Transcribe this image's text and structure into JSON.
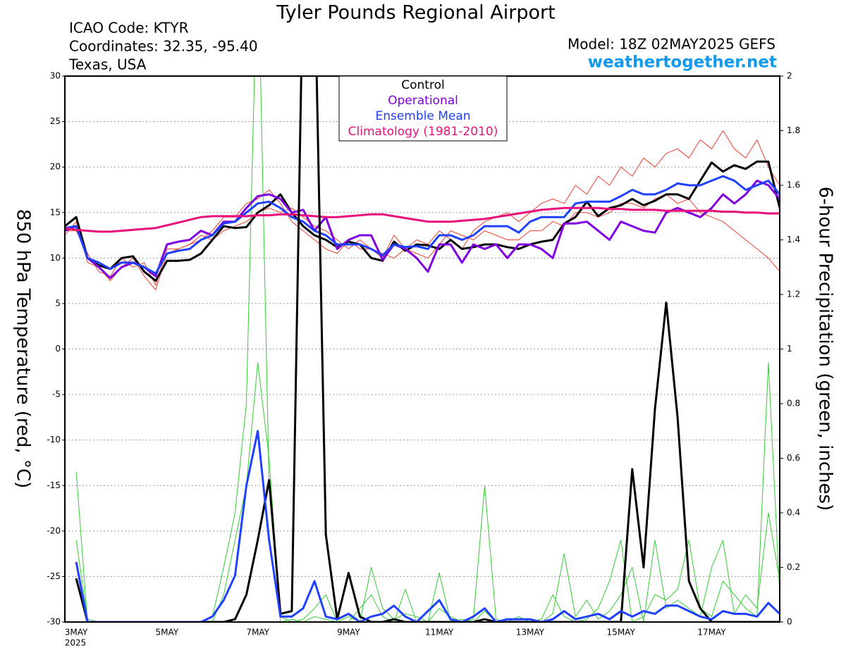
{
  "chart_data": {
    "type": "line",
    "title": "Tyler Pounds Regional Airport",
    "header_left": [
      "ICAO Code: KTYR",
      "Coordinates: 32.35, -95.40",
      "Texas, USA"
    ],
    "model": "Model: 18Z 02MAY2025 GEFS",
    "source": "weathertogether.net",
    "ylabel": "850 hPa Temperature (red, °C)",
    "y2label": "6-hour Precipitation (green, inches)",
    "year": "2025",
    "categories": [
      null,
      "3MAY",
      null,
      null,
      null,
      null,
      null,
      null,
      null,
      "5MAY",
      null,
      null,
      null,
      null,
      null,
      null,
      null,
      "7MAY",
      null,
      null,
      null,
      null,
      null,
      null,
      null,
      "9MAY",
      null,
      null,
      null,
      null,
      null,
      null,
      null,
      "11MAY",
      null,
      null,
      null,
      null,
      null,
      null,
      null,
      "13MAY",
      null,
      null,
      null,
      null,
      null,
      null,
      null,
      "15MAY",
      null,
      null,
      null,
      null,
      null,
      null,
      null,
      "17MAY",
      null,
      null,
      null,
      null,
      null,
      null
    ],
    "ylim": [
      -30,
      30
    ],
    "yticks": [
      -30,
      -25,
      -20,
      -15,
      -10,
      -5,
      0,
      5,
      10,
      15,
      20,
      25,
      30
    ],
    "y2lim": [
      0,
      2
    ],
    "y2ticks": [
      0,
      0.2,
      0.4,
      0.6,
      0.8,
      1,
      1.2,
      1.4,
      1.6,
      1.8,
      2
    ],
    "grid": true,
    "series": [
      {
        "color": "#f04030",
        "values": [
          12.5,
          14,
          9.5,
          9,
          7.5,
          9,
          10,
          8,
          6.5,
          10.5,
          11,
          11.5,
          12,
          13,
          14.5,
          14.5,
          16,
          16.5,
          17.5,
          16,
          14,
          13,
          12,
          11,
          10.5,
          12,
          11,
          11,
          10,
          12.5,
          11,
          12,
          11.5,
          13,
          12,
          11,
          13,
          14,
          14.5,
          15,
          14,
          15,
          16,
          16.5,
          16,
          18,
          17,
          19,
          18,
          20,
          19,
          21,
          20,
          21.5,
          22,
          21,
          23,
          22,
          24,
          22,
          21,
          23,
          20,
          18
        ]
      },
      {
        "color": "#f04030",
        "values": [
          13,
          13,
          10.5,
          8.5,
          8,
          10,
          9,
          9.5,
          7,
          11,
          11,
          11.5,
          12.5,
          12,
          13,
          13.5,
          14,
          15,
          15.5,
          15,
          15.5,
          14.5,
          13.5,
          13,
          12,
          11,
          12,
          11,
          10.5,
          10,
          11,
          10.5,
          10,
          11.5,
          13,
          12.5,
          12,
          13,
          12.5,
          12,
          12,
          13,
          13,
          14,
          13.5,
          15,
          15,
          14.5,
          15,
          16,
          16,
          15.5,
          16.5,
          17,
          16,
          16.5,
          15,
          14.5,
          14,
          13,
          12,
          11,
          10,
          8.5
        ]
      },
      {
        "color": "#33cc33",
        "axis": "y2",
        "values": [
          null,
          0.55,
          0,
          0,
          0,
          0,
          0,
          0,
          0,
          0,
          0,
          0,
          0,
          0,
          0.1,
          0.3,
          0.5,
          0.95,
          0.6,
          0.02,
          0,
          0.01,
          0.05,
          0.1,
          0,
          0,
          0.05,
          0.1,
          0.02,
          0,
          0.12,
          0,
          0,
          0.18,
          0,
          0.01,
          0,
          0.04,
          0,
          0,
          0,
          0,
          0.01,
          0.1,
          0.02,
          0,
          0.01,
          0.05,
          0.15,
          0.3,
          0,
          0.02,
          0.1,
          0.08,
          0.12,
          0.3,
          0.05,
          0.02,
          0.15,
          0.1,
          0.05,
          0.02,
          0.95,
          0.1
        ]
      },
      {
        "color": "#33cc33",
        "axis": "y2",
        "values": [
          null,
          0.3,
          0.01,
          0,
          0,
          0,
          0,
          0,
          0,
          0,
          0,
          0,
          0,
          0.02,
          0.2,
          0.4,
          0.8,
          2.5,
          0.5,
          0,
          0.01,
          0,
          0.02,
          0.01,
          0,
          0.02,
          0,
          0.2,
          0.05,
          0.01,
          0.03,
          0.02,
          0,
          0.05,
          0.02,
          0,
          0.01,
          0.5,
          0.01,
          0,
          0.02,
          0,
          0,
          0.03,
          0.25,
          0.02,
          0.08,
          0.01,
          0.04,
          0.1,
          0.2,
          0,
          0.3,
          0.05,
          0.08,
          0.05,
          0.02,
          0.2,
          0.3,
          0.03,
          0.1,
          0.05,
          0.4,
          0.15
        ]
      },
      {
        "name": "Control",
        "color": "#000000",
        "values": [
          13.5,
          14.5,
          10,
          9.2,
          8.8,
          10,
          10.2,
          8.5,
          7.5,
          9.7,
          9.7,
          9.8,
          10.5,
          12,
          13.5,
          13.3,
          13.4,
          15,
          15.8,
          17,
          15,
          13.5,
          12.5,
          12,
          11.2,
          11.8,
          11.5,
          10,
          9.7,
          11.8,
          10.8,
          11.5,
          11.4,
          11,
          12,
          11,
          11.2,
          11.5,
          11.5,
          11.2,
          11,
          11.5,
          11.8,
          12,
          13.8,
          14.5,
          16.2,
          14.6,
          15.5,
          15.8,
          16.5,
          15.8,
          16.3,
          17,
          17,
          16.5,
          18.5,
          20.5,
          19.5,
          20.2,
          19.8,
          20.6,
          20.6,
          15.5
        ]
      },
      {
        "name": "Operational",
        "color": "#8000e0",
        "values": [
          13,
          13.5,
          10,
          9,
          7.8,
          9,
          9.5,
          9,
          8,
          11.5,
          11.8,
          12,
          13,
          12.5,
          14,
          14,
          15.5,
          16.8,
          17,
          16.5,
          15,
          15.3,
          13,
          14.5,
          11,
          12,
          12.5,
          12.5,
          9.8,
          11.5,
          11,
          10,
          8.5,
          11.5,
          11.5,
          9.5,
          11.5,
          11,
          11.5,
          10,
          11.5,
          11.5,
          11,
          10,
          13.8,
          13.8,
          14,
          13,
          12,
          14,
          13.5,
          13,
          12.8,
          15,
          15.5,
          15,
          14.5,
          15.5,
          17,
          16,
          17,
          18.5,
          18,
          16.5
        ]
      },
      {
        "name": "Ensemble Mean",
        "color": "#2040ff",
        "values": [
          13.3,
          13.5,
          10,
          9.5,
          8.8,
          9.5,
          9.5,
          9,
          8.3,
          10.5,
          10.8,
          11,
          12,
          12.5,
          13.8,
          14,
          15,
          16,
          16.2,
          15.5,
          14.5,
          14,
          13,
          12.5,
          11.5,
          11.5,
          11.5,
          11,
          10.3,
          11.5,
          11.2,
          11.3,
          11,
          12.5,
          12.5,
          12,
          12.5,
          13.5,
          13.5,
          13.5,
          12.8,
          14,
          14.5,
          14.5,
          14.5,
          16,
          16.2,
          16.2,
          16.2,
          16.8,
          17.5,
          17,
          17,
          17.5,
          18.2,
          18,
          18,
          18.5,
          19,
          18.5,
          17.5,
          18,
          18.5,
          17
        ]
      },
      {
        "name": "Climatology (1981-2010)",
        "color": "#e8107a",
        "values": [
          13.3,
          13.1,
          13.0,
          12.9,
          12.9,
          13.0,
          13.1,
          13.2,
          13.3,
          13.6,
          13.9,
          14.2,
          14.5,
          14.6,
          14.6,
          14.6,
          14.6,
          14.7,
          14.7,
          14.8,
          14.8,
          14.7,
          14.6,
          14.5,
          14.5,
          14.6,
          14.7,
          14.8,
          14.8,
          14.6,
          14.4,
          14.2,
          14.0,
          14.0,
          14.0,
          14.1,
          14.2,
          14.3,
          14.5,
          14.7,
          14.9,
          15.1,
          15.3,
          15.4,
          15.5,
          15.5,
          15.5,
          15.5,
          15.4,
          15.4,
          15.3,
          15.3,
          15.3,
          15.2,
          15.2,
          15.2,
          15.2,
          15.2,
          15.1,
          15.1,
          15.0,
          15.0,
          14.9,
          14.9
        ]
      },
      {
        "name": "Control",
        "color": "#000000",
        "axis": "y2",
        "values": [
          null,
          0.16,
          0,
          0,
          0,
          0,
          0,
          0,
          0,
          0,
          0,
          0,
          0,
          0,
          0,
          0.01,
          0.1,
          0.3,
          0.52,
          0.03,
          0.04,
          2.4,
          2.4,
          0.32,
          0.01,
          0.18,
          0.02,
          0,
          0,
          0.01,
          0,
          0,
          0,
          0,
          0,
          0,
          0,
          0.01,
          0,
          0,
          0,
          0,
          0,
          0,
          0,
          0,
          0,
          0,
          0,
          0,
          0.56,
          0.2,
          0.78,
          1.17,
          0.75,
          0.15,
          0.05,
          0,
          0,
          0,
          0,
          0,
          0,
          0
        ]
      },
      {
        "name": "Ensemble Mean",
        "color": "#2040ff",
        "axis": "y2",
        "values": [
          null,
          0.22,
          0,
          0,
          0,
          0,
          0,
          0,
          0,
          0,
          0,
          0,
          0,
          0.02,
          0.08,
          0.17,
          0.5,
          0.7,
          0.3,
          0.02,
          0.02,
          0.05,
          0.15,
          0.02,
          0.01,
          0.03,
          0,
          0.02,
          0.03,
          0.06,
          0.02,
          0,
          0.04,
          0.08,
          0.01,
          0,
          0.02,
          0.05,
          0,
          0.01,
          0.01,
          0.01,
          0,
          0.01,
          0.04,
          0.01,
          0.02,
          0.03,
          0.01,
          0.04,
          0.02,
          0.04,
          0.03,
          0.06,
          0.06,
          0.04,
          0.02,
          0.01,
          0.04,
          0.03,
          0.03,
          0.02,
          0.07,
          0.03
        ]
      }
    ]
  }
}
